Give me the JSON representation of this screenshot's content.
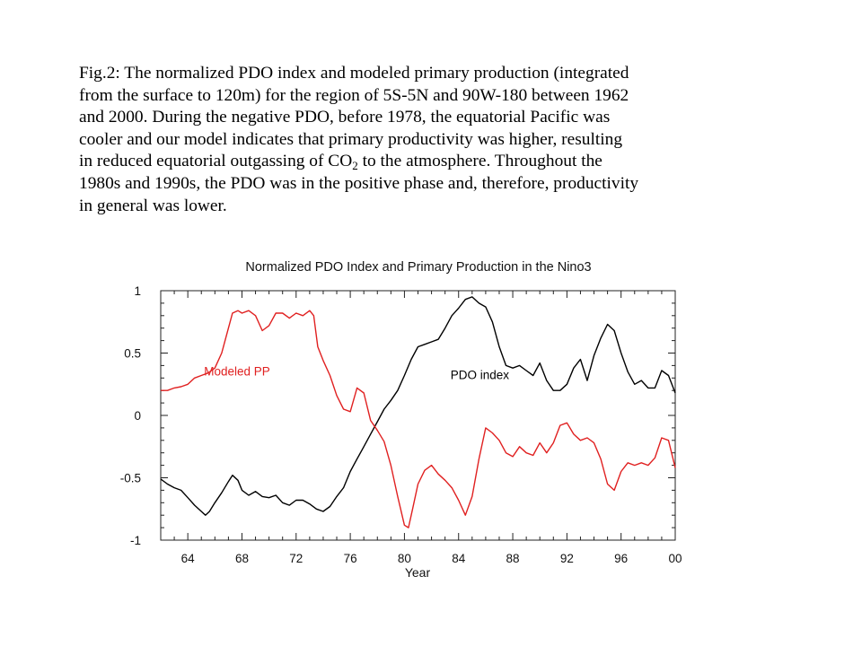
{
  "caption": {
    "line1": "Fig.2: The normalized PDO index and modeled primary production (integrated",
    "line2": "from the surface to 120m) for the region of 5S-5N and 90W-180 between 1962",
    "line3": "and 2000. During the negative PDO, before 1978, the equatorial Pacific was",
    "line4": "cooler and our model indicates that primary productivity was higher, resulting",
    "line5_pre": "in reduced equatorial outgassing of CO",
    "line5_sub": "2",
    "line5_post": " to the atmosphere. Throughout the",
    "line6": "1980s and 1990s, the PDO was in the positive phase and, therefore, productivity",
    "line7": "in general was lower."
  },
  "chart_data": {
    "type": "line",
    "title": "Normalized PDO Index and Primary Production in the Nino3",
    "xlabel": "Year",
    "ylabel": "",
    "xlim": [
      1962,
      2000
    ],
    "ylim": [
      -1,
      1
    ],
    "x_ticks": [
      1964,
      1968,
      1972,
      1976,
      1980,
      1984,
      1988,
      1992,
      1996,
      2000
    ],
    "x_tick_labels": [
      "64",
      "68",
      "72",
      "76",
      "80",
      "84",
      "88",
      "92",
      "96",
      "00"
    ],
    "y_ticks": [
      -1,
      -0.5,
      0,
      0.5,
      1
    ],
    "y_tick_labels": [
      "-1",
      "-0.5",
      "0",
      "0.5",
      "1"
    ],
    "grid": false,
    "series": [
      {
        "name": "PDO index",
        "color": "#000000",
        "label_at": [
          1983.4,
          0.29
        ],
        "points": [
          [
            1962,
            -0.51
          ],
          [
            1962.5,
            -0.55
          ],
          [
            1963,
            -0.58
          ],
          [
            1963.5,
            -0.6
          ],
          [
            1964,
            -0.66
          ],
          [
            1964.5,
            -0.72
          ],
          [
            1965,
            -0.77
          ],
          [
            1965.3,
            -0.8
          ],
          [
            1965.6,
            -0.77
          ],
          [
            1966,
            -0.7
          ],
          [
            1966.5,
            -0.62
          ],
          [
            1967,
            -0.53
          ],
          [
            1967.3,
            -0.48
          ],
          [
            1967.7,
            -0.52
          ],
          [
            1968,
            -0.6
          ],
          [
            1968.5,
            -0.64
          ],
          [
            1969,
            -0.61
          ],
          [
            1969.5,
            -0.65
          ],
          [
            1970,
            -0.66
          ],
          [
            1970.5,
            -0.64
          ],
          [
            1971,
            -0.7
          ],
          [
            1971.5,
            -0.72
          ],
          [
            1972,
            -0.68
          ],
          [
            1972.5,
            -0.68
          ],
          [
            1973,
            -0.71
          ],
          [
            1973.5,
            -0.75
          ],
          [
            1974,
            -0.77
          ],
          [
            1974.5,
            -0.73
          ],
          [
            1975,
            -0.65
          ],
          [
            1975.5,
            -0.58
          ],
          [
            1976,
            -0.45
          ],
          [
            1976.5,
            -0.35
          ],
          [
            1977,
            -0.25
          ],
          [
            1977.5,
            -0.15
          ],
          [
            1978,
            -0.05
          ],
          [
            1978.5,
            0.05
          ],
          [
            1979,
            0.12
          ],
          [
            1979.5,
            0.2
          ],
          [
            1980,
            0.32
          ],
          [
            1980.5,
            0.45
          ],
          [
            1981,
            0.55
          ],
          [
            1981.5,
            0.57
          ],
          [
            1982,
            0.59
          ],
          [
            1982.5,
            0.61
          ],
          [
            1983,
            0.7
          ],
          [
            1983.5,
            0.8
          ],
          [
            1984,
            0.86
          ],
          [
            1984.5,
            0.93
          ],
          [
            1985,
            0.95
          ],
          [
            1985.5,
            0.9
          ],
          [
            1986,
            0.87
          ],
          [
            1986.5,
            0.75
          ],
          [
            1987,
            0.55
          ],
          [
            1987.5,
            0.4
          ],
          [
            1988,
            0.38
          ],
          [
            1988.5,
            0.4
          ],
          [
            1989,
            0.36
          ],
          [
            1989.5,
            0.32
          ],
          [
            1990,
            0.42
          ],
          [
            1990.5,
            0.28
          ],
          [
            1991,
            0.2
          ],
          [
            1991.5,
            0.2
          ],
          [
            1992,
            0.25
          ],
          [
            1992.5,
            0.38
          ],
          [
            1993,
            0.45
          ],
          [
            1993.5,
            0.28
          ],
          [
            1994,
            0.48
          ],
          [
            1994.5,
            0.62
          ],
          [
            1995,
            0.73
          ],
          [
            1995.5,
            0.68
          ],
          [
            1996,
            0.5
          ],
          [
            1996.5,
            0.35
          ],
          [
            1997,
            0.25
          ],
          [
            1997.5,
            0.28
          ],
          [
            1998,
            0.22
          ],
          [
            1998.5,
            0.22
          ],
          [
            1999,
            0.36
          ],
          [
            1999.5,
            0.32
          ],
          [
            2000,
            0.18
          ]
        ]
      },
      {
        "name": "Modeled PP",
        "color": "#e02020",
        "label_at": [
          1965.2,
          0.32
        ],
        "points": [
          [
            1962,
            0.2
          ],
          [
            1962.5,
            0.2
          ],
          [
            1963,
            0.22
          ],
          [
            1963.5,
            0.23
          ],
          [
            1964,
            0.25
          ],
          [
            1964.5,
            0.3
          ],
          [
            1965,
            0.32
          ],
          [
            1965.5,
            0.34
          ],
          [
            1966,
            0.38
          ],
          [
            1966.5,
            0.5
          ],
          [
            1967,
            0.7
          ],
          [
            1967.3,
            0.82
          ],
          [
            1967.7,
            0.84
          ],
          [
            1968,
            0.82
          ],
          [
            1968.5,
            0.84
          ],
          [
            1969,
            0.8
          ],
          [
            1969.5,
            0.68
          ],
          [
            1970,
            0.72
          ],
          [
            1970.5,
            0.82
          ],
          [
            1971,
            0.82
          ],
          [
            1971.5,
            0.78
          ],
          [
            1972,
            0.82
          ],
          [
            1972.5,
            0.8
          ],
          [
            1973,
            0.84
          ],
          [
            1973.3,
            0.8
          ],
          [
            1973.6,
            0.55
          ],
          [
            1974,
            0.44
          ],
          [
            1974.5,
            0.32
          ],
          [
            1975,
            0.16
          ],
          [
            1975.5,
            0.05
          ],
          [
            1976,
            0.03
          ],
          [
            1976.5,
            0.22
          ],
          [
            1977,
            0.18
          ],
          [
            1977.5,
            -0.04
          ],
          [
            1978,
            -0.12
          ],
          [
            1978.5,
            -0.21
          ],
          [
            1979,
            -0.4
          ],
          [
            1979.5,
            -0.65
          ],
          [
            1980,
            -0.88
          ],
          [
            1980.3,
            -0.9
          ],
          [
            1980.6,
            -0.75
          ],
          [
            1981,
            -0.55
          ],
          [
            1981.5,
            -0.44
          ],
          [
            1982,
            -0.4
          ],
          [
            1982.5,
            -0.47
          ],
          [
            1983,
            -0.52
          ],
          [
            1983.5,
            -0.58
          ],
          [
            1984,
            -0.68
          ],
          [
            1984.5,
            -0.8
          ],
          [
            1985,
            -0.65
          ],
          [
            1985.5,
            -0.35
          ],
          [
            1986,
            -0.1
          ],
          [
            1986.5,
            -0.14
          ],
          [
            1987,
            -0.2
          ],
          [
            1987.5,
            -0.3
          ],
          [
            1988,
            -0.33
          ],
          [
            1988.5,
            -0.25
          ],
          [
            1989,
            -0.3
          ],
          [
            1989.5,
            -0.32
          ],
          [
            1990,
            -0.22
          ],
          [
            1990.5,
            -0.3
          ],
          [
            1991,
            -0.22
          ],
          [
            1991.5,
            -0.08
          ],
          [
            1992,
            -0.06
          ],
          [
            1992.5,
            -0.15
          ],
          [
            1993,
            -0.2
          ],
          [
            1993.5,
            -0.18
          ],
          [
            1994,
            -0.22
          ],
          [
            1994.5,
            -0.35
          ],
          [
            1995,
            -0.55
          ],
          [
            1995.5,
            -0.6
          ],
          [
            1996,
            -0.45
          ],
          [
            1996.5,
            -0.38
          ],
          [
            1997,
            -0.4
          ],
          [
            1997.5,
            -0.38
          ],
          [
            1998,
            -0.4
          ],
          [
            1998.5,
            -0.34
          ],
          [
            1999,
            -0.18
          ],
          [
            1999.5,
            -0.2
          ],
          [
            2000,
            -0.42
          ]
        ]
      }
    ]
  }
}
